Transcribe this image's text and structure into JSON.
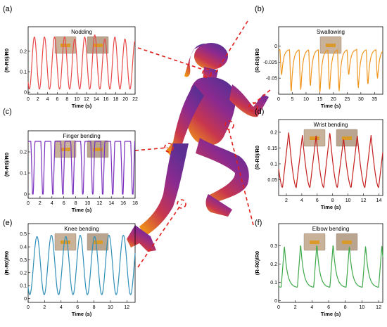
{
  "figure": {
    "connector_color": "#e0201c",
    "silhouette_colors": [
      "#f39a12",
      "#c8364e",
      "#8c2a8f",
      "#5e2f93"
    ]
  },
  "chart_data": [
    {
      "id": "a",
      "type": "line",
      "panel_label": "(a)",
      "title": "Nodding",
      "color": "#e84a4a",
      "photos": 2,
      "xlabel": "Time (s)",
      "ylabel": "(R-R0)/R0",
      "xlim": [
        0,
        22
      ],
      "ylim": [
        -0.01,
        0.32
      ],
      "xticks": [
        0,
        2,
        4,
        6,
        8,
        10,
        12,
        14,
        16,
        18,
        20,
        22
      ],
      "yticks": [
        0.0,
        0.1,
        0.2
      ],
      "series": [
        {
          "shape": "smooth",
          "baseline": 0.015,
          "period": 2.07,
          "phase": 0.25,
          "peaks": [
            0.27,
            0.27,
            0.27,
            0.27,
            0.26,
            0.27,
            0.28,
            0.26,
            0.27,
            0.26,
            0.25
          ]
        }
      ]
    },
    {
      "id": "b",
      "type": "line",
      "panel_label": "(b)",
      "title": "Swallowing",
      "color": "#f0961e",
      "photos": 1,
      "xlabel": "Time (s)",
      "ylabel": "(R-R0)/R0",
      "xlim": [
        0,
        38
      ],
      "ylim": [
        -0.075,
        0.03
      ],
      "xticks": [
        0,
        5,
        10,
        15,
        20,
        25,
        30,
        35
      ],
      "yticks": [
        0.0,
        -0.025,
        -0.05
      ],
      "series": [
        {
          "shape": "dip",
          "baseline": -0.005,
          "period": 3.5,
          "phase": 0.5,
          "troughs": [
            -0.045,
            -0.07,
            -0.068,
            -0.062,
            -0.072,
            -0.068,
            -0.07,
            -0.045,
            -0.065,
            -0.06,
            -0.05
          ]
        }
      ]
    },
    {
      "id": "c",
      "type": "line",
      "panel_label": "(c)",
      "title": "Finger bending",
      "color": "#7a2fbf",
      "photos": 2,
      "xlabel": "Time (s)",
      "ylabel": "(R-R0)/R0",
      "xlim": [
        0,
        18
      ],
      "ylim": [
        -0.02,
        0.3
      ],
      "xticks": [
        0,
        2,
        4,
        6,
        8,
        10,
        12,
        14,
        16,
        18
      ],
      "yticks": [
        0.0,
        0.1,
        0.2
      ],
      "series": [
        {
          "shape": "plateau",
          "baseline": 0.0,
          "period": 1.68,
          "phase": 0.8,
          "peaks": [
            0.25,
            0.25,
            0.25,
            0.25,
            0.25,
            0.25,
            0.25,
            0.25,
            0.25,
            0.25
          ]
        }
      ]
    },
    {
      "id": "d",
      "type": "line",
      "panel_label": "(d)",
      "title": "Wrist bending",
      "color": "#c42020",
      "photos": 2,
      "xlabel": "Time (s)",
      "ylabel": "(R-R0)/R0",
      "xlim": [
        1,
        14.5
      ],
      "ylim": [
        0.0,
        0.24
      ],
      "xticks": [
        2,
        4,
        6,
        8,
        10,
        12,
        14
      ],
      "yticks": [
        0.05,
        0.1,
        0.15,
        0.2
      ],
      "series": [
        {
          "shape": "sawtooth",
          "baseline": 0.025,
          "period": 1.78,
          "phase": 1.5,
          "peaks": [
            0.2,
            0.19,
            0.19,
            0.2,
            0.18,
            0.19,
            0.19
          ]
        }
      ]
    },
    {
      "id": "e",
      "type": "line",
      "panel_label": "(e)",
      "title": "Knee bending",
      "color": "#2f8fb8",
      "photos": 2,
      "xlabel": "Time (s)",
      "ylabel": "(R-R0)/R0",
      "xlim": [
        0,
        13
      ],
      "ylim": [
        -0.03,
        0.58
      ],
      "xticks": [
        0,
        2,
        4,
        6,
        8,
        10,
        12
      ],
      "yticks": [
        0.0,
        0.1,
        0.2,
        0.3,
        0.4,
        0.5
      ],
      "series": [
        {
          "shape": "smooth",
          "baseline": 0.03,
          "period": 1.75,
          "phase": 0.2,
          "peaks": [
            0.48,
            0.49,
            0.48,
            0.49,
            0.48,
            0.49,
            0.49
          ]
        }
      ]
    },
    {
      "id": "f",
      "type": "line",
      "panel_label": "(f)",
      "title": "Elbow bending",
      "color": "#3fa94a",
      "photos": 2,
      "xlabel": "Time (s)",
      "ylabel": "(R-R0)/R0",
      "xlim": [
        0,
        12.5
      ],
      "ylim": [
        -0.01,
        0.42
      ],
      "xticks": [
        0,
        2,
        4,
        6,
        8,
        10,
        12
      ],
      "yticks": [
        0.0,
        0.1,
        0.2,
        0.3
      ],
      "series": [
        {
          "shape": "spike",
          "baseline": 0.07,
          "period": 1.95,
          "phase": 0.3,
          "peaks": [
            0.3,
            0.31,
            0.31,
            0.31,
            0.3,
            0.3
          ]
        }
      ]
    }
  ]
}
